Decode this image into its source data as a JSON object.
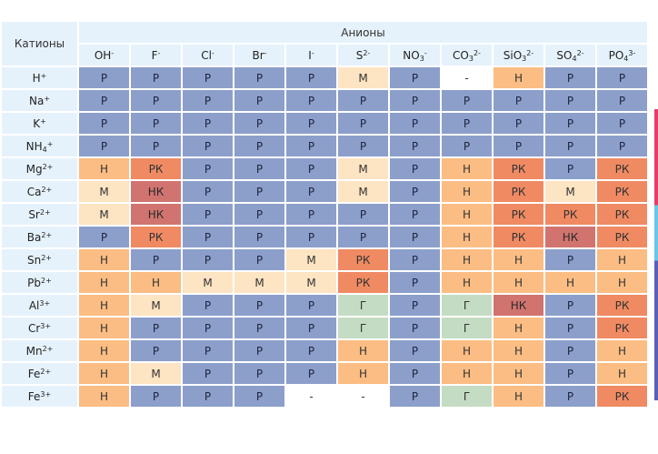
{
  "header": {
    "cations": "Катионы",
    "anions": "Анионы"
  },
  "anions": [
    {
      "base": "OH",
      "sup": "-",
      "sub": ""
    },
    {
      "base": "F",
      "sup": "-",
      "sub": ""
    },
    {
      "base": "Cl",
      "sup": "-",
      "sub": ""
    },
    {
      "base": "Br",
      "sup": "-",
      "sub": ""
    },
    {
      "base": "I",
      "sup": "-",
      "sub": ""
    },
    {
      "base": "S",
      "sup": "2-",
      "sub": ""
    },
    {
      "base": "NO",
      "sub": "3",
      "sup": "-"
    },
    {
      "base": "CO",
      "sub": "3",
      "sup": "2-"
    },
    {
      "base": "SiO",
      "sub": "3",
      "sup": "2-"
    },
    {
      "base": "SO",
      "sub": "4",
      "sup": "2-"
    },
    {
      "base": "PO",
      "sub": "4",
      "sup": "3-"
    }
  ],
  "rows": [
    {
      "base": "H",
      "sub": "",
      "sup": "+",
      "cells": [
        "Р",
        "Р",
        "Р",
        "Р",
        "Р",
        "М",
        "Р",
        "-",
        "Н",
        "Р",
        "Р"
      ]
    },
    {
      "base": "Na",
      "sub": "",
      "sup": "+",
      "cells": [
        "Р",
        "Р",
        "Р",
        "Р",
        "Р",
        "Р",
        "Р",
        "Р",
        "Р",
        "Р",
        "Р"
      ]
    },
    {
      "base": "K",
      "sub": "",
      "sup": "+",
      "cells": [
        "Р",
        "Р",
        "Р",
        "Р",
        "Р",
        "Р",
        "Р",
        "Р",
        "Р",
        "Р",
        "Р"
      ]
    },
    {
      "base": "NH",
      "sub": "4",
      "sup": "+",
      "cells": [
        "Р",
        "Р",
        "Р",
        "Р",
        "Р",
        "Р",
        "Р",
        "Р",
        "Р",
        "Р",
        "Р"
      ]
    },
    {
      "base": "Mg",
      "sub": "",
      "sup": "2+",
      "cells": [
        "Н",
        "РК",
        "Р",
        "Р",
        "Р",
        "М",
        "Р",
        "Н",
        "РК",
        "Р",
        "РК"
      ]
    },
    {
      "base": "Ca",
      "sub": "",
      "sup": "2+",
      "cells": [
        "М",
        "НК",
        "Р",
        "Р",
        "Р",
        "М",
        "Р",
        "Н",
        "РК",
        "М",
        "РК"
      ]
    },
    {
      "base": "Sr",
      "sub": "",
      "sup": "2+",
      "cells": [
        "М",
        "НК",
        "Р",
        "Р",
        "Р",
        "Р",
        "Р",
        "Н",
        "РК",
        "РК",
        "РК"
      ]
    },
    {
      "base": "Ba",
      "sub": "",
      "sup": "2+",
      "cells": [
        "Р",
        "РК",
        "Р",
        "Р",
        "Р",
        "Р",
        "Р",
        "Н",
        "РК",
        "НК",
        "РК"
      ]
    },
    {
      "base": "Sn",
      "sub": "",
      "sup": "2+",
      "cells": [
        "Н",
        "Р",
        "Р",
        "Р",
        "М",
        "РК",
        "Р",
        "Н",
        "Н",
        "Р",
        "Н"
      ]
    },
    {
      "base": "Pb",
      "sub": "",
      "sup": "2+",
      "cells": [
        "Н",
        "Н",
        "М",
        "М",
        "М",
        "РК",
        "Р",
        "Н",
        "Н",
        "Н",
        "Н"
      ]
    },
    {
      "base": "Al",
      "sub": "",
      "sup": "3+",
      "cells": [
        "Н",
        "М",
        "Р",
        "Р",
        "Р",
        "Г",
        "Р",
        "Г",
        "НК",
        "Р",
        "РК"
      ]
    },
    {
      "base": "Cr",
      "sub": "",
      "sup": "3+",
      "cells": [
        "Н",
        "Р",
        "Р",
        "Р",
        "Р",
        "Г",
        "Р",
        "Г",
        "Н",
        "Р",
        "РК"
      ]
    },
    {
      "base": "Mn",
      "sub": "",
      "sup": "2+",
      "cells": [
        "Н",
        "Р",
        "Р",
        "Р",
        "Р",
        "Н",
        "Р",
        "Н",
        "Н",
        "Р",
        "Н"
      ]
    },
    {
      "base": "Fe",
      "sub": "",
      "sup": "2+",
      "cells": [
        "Н",
        "М",
        "Р",
        "Р",
        "Р",
        "Н",
        "Р",
        "Н",
        "Н",
        "Р",
        "Н"
      ]
    },
    {
      "base": "Fe",
      "sub": "",
      "sup": "3+",
      "cells": [
        "Н",
        "Р",
        "Р",
        "Р",
        "-",
        "-",
        "Р",
        "Г",
        "Н",
        "Р",
        "РК"
      ]
    }
  ],
  "colors": {
    "Р": "#8c9fcb",
    "М": "#fde4c2",
    "Н": "#fbbd83",
    "РК": "#ef8a63",
    "НК": "#d17470",
    "Г": "#c4dcc3",
    "-": "#ffffff"
  }
}
